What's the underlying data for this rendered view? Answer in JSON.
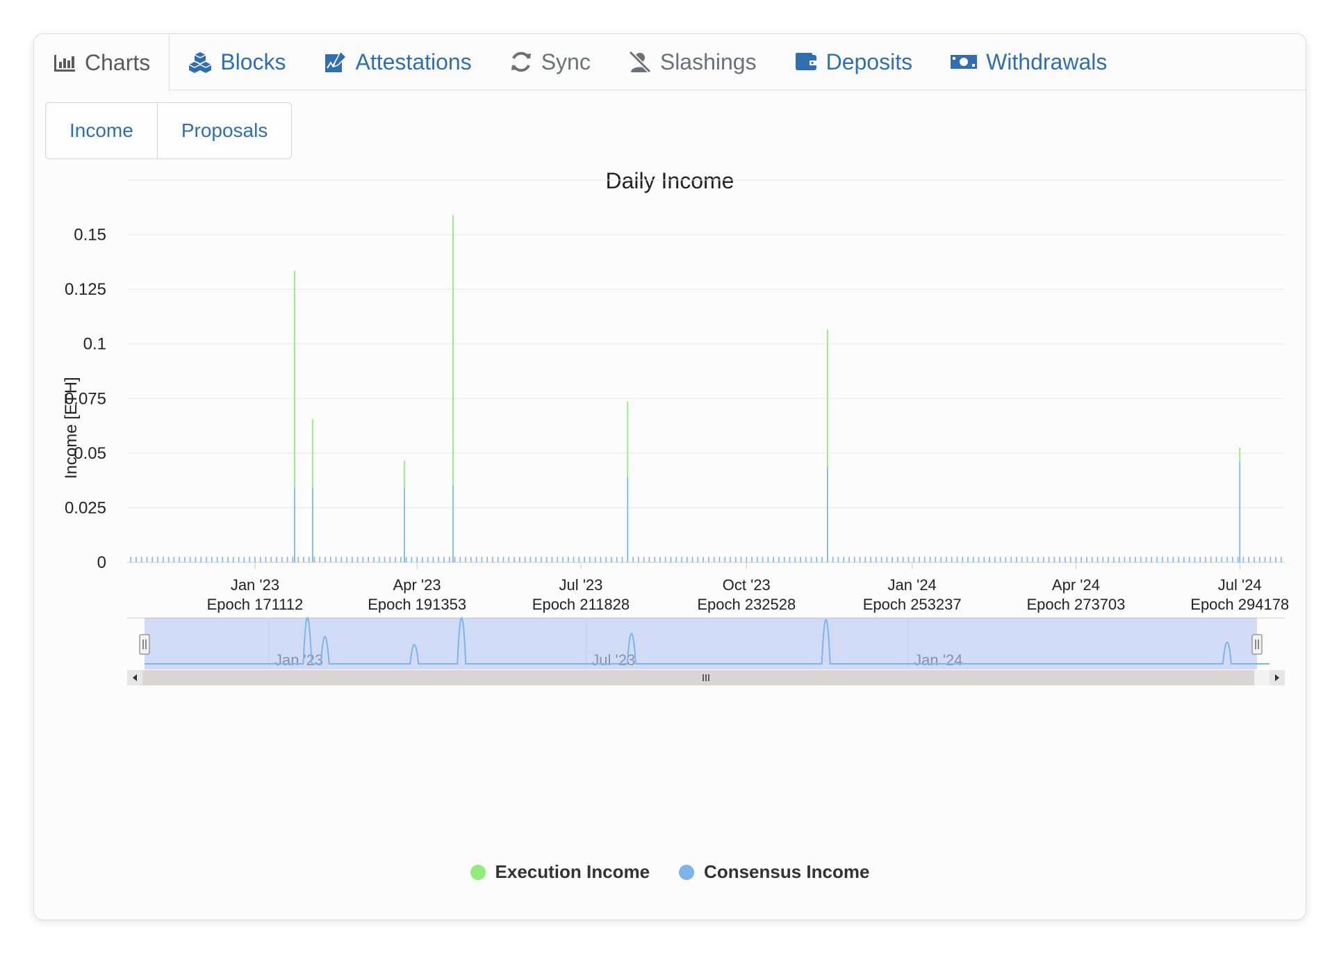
{
  "nav": {
    "tabs": [
      {
        "label": "Charts",
        "icon": "bar-chart-icon"
      },
      {
        "label": "Blocks",
        "icon": "cubes-icon"
      },
      {
        "label": "Attestations",
        "icon": "signature-icon"
      },
      {
        "label": "Sync",
        "icon": "sync-icon"
      },
      {
        "label": "Slashings",
        "icon": "user-slash-icon"
      },
      {
        "label": "Deposits",
        "icon": "wallet-icon"
      },
      {
        "label": "Withdrawals",
        "icon": "money-bill-icon"
      }
    ],
    "active_tab": "Charts"
  },
  "subtabs": {
    "income": "Income",
    "proposals": "Proposals"
  },
  "colors": {
    "accent": "#2f6fb0",
    "execution": "#90ed7d",
    "consensus": "#7cb5ec"
  },
  "chart_data": {
    "type": "bar",
    "title": "Daily Income",
    "ylabel": "Income [ETH]",
    "ylim": [
      0,
      0.175
    ],
    "yticks": [
      0,
      0.025,
      0.05,
      0.075,
      0.1,
      0.125,
      0.15
    ],
    "ytick_labels": [
      "0",
      "0.025",
      "0.05",
      "0.075",
      "0.1",
      "0.125",
      "0.15"
    ],
    "x_ticks": [
      {
        "date": "2023-01-01",
        "line1": "Jan '23",
        "line2": "Epoch 171112"
      },
      {
        "date": "2023-04-01",
        "line1": "Apr '23",
        "line2": "Epoch 191353"
      },
      {
        "date": "2023-07-01",
        "line1": "Jul '23",
        "line2": "Epoch 211828"
      },
      {
        "date": "2023-10-01",
        "line1": "Oct '23",
        "line2": "Epoch 232528"
      },
      {
        "date": "2024-01-01",
        "line1": "Jan '24",
        "line2": "Epoch 253237"
      },
      {
        "date": "2024-04-01",
        "line1": "Apr '24",
        "line2": "Epoch 273703"
      },
      {
        "date": "2024-07-01",
        "line1": "Jul '24",
        "line2": "Epoch 294178"
      }
    ],
    "xlim": [
      "2022-10-22",
      "2024-07-26"
    ],
    "stacked": true,
    "series": [
      {
        "name": "Execution Income",
        "points": [
          {
            "date": "2023-01-23",
            "value": 0.0995
          },
          {
            "date": "2023-02-02",
            "value": 0.0315
          },
          {
            "date": "2023-03-25",
            "value": 0.0125
          },
          {
            "date": "2023-04-21",
            "value": 0.124
          },
          {
            "date": "2023-07-27",
            "value": 0.0345
          },
          {
            "date": "2023-11-15",
            "value": 0.0625
          },
          {
            "date": "2024-07-01",
            "value": 0.0065
          }
        ]
      },
      {
        "name": "Consensus Income",
        "baseline_value": 0.0025,
        "points": [
          {
            "date": "2023-01-23",
            "value": 0.034
          },
          {
            "date": "2023-02-02",
            "value": 0.034
          },
          {
            "date": "2023-03-25",
            "value": 0.034
          },
          {
            "date": "2023-04-21",
            "value": 0.035
          },
          {
            "date": "2023-07-27",
            "value": 0.039
          },
          {
            "date": "2023-11-15",
            "value": 0.044
          },
          {
            "date": "2024-07-01",
            "value": 0.046
          }
        ]
      }
    ],
    "navigator": {
      "labels": [
        {
          "date": "2023-01-01",
          "text": "Jan '23"
        },
        {
          "date": "2023-07-01",
          "text": "Jul '23"
        },
        {
          "date": "2024-01-01",
          "text": "Jan '24"
        }
      ]
    },
    "legend_position": "bottom-center",
    "grid": true
  }
}
